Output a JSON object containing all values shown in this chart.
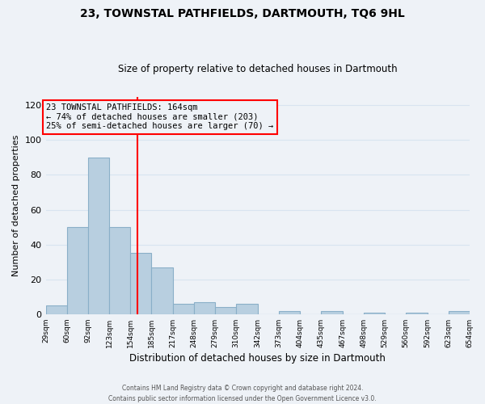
{
  "title": "23, TOWNSTAL PATHFIELDS, DARTMOUTH, TQ6 9HL",
  "subtitle": "Size of property relative to detached houses in Dartmouth",
  "xlabel": "Distribution of detached houses by size in Dartmouth",
  "ylabel": "Number of detached properties",
  "bar_color": "#b8cfe0",
  "bar_edge_color": "#8aafc8",
  "bins": [
    29,
    60,
    92,
    123,
    154,
    185,
    217,
    248,
    279,
    310,
    342,
    373,
    404,
    435,
    467,
    498,
    529,
    560,
    592,
    623,
    654
  ],
  "counts": [
    5,
    50,
    90,
    50,
    35,
    27,
    6,
    7,
    4,
    6,
    0,
    2,
    0,
    2,
    0,
    1,
    0,
    1,
    0,
    2
  ],
  "tick_labels": [
    "29sqm",
    "60sqm",
    "92sqm",
    "123sqm",
    "154sqm",
    "185sqm",
    "217sqm",
    "248sqm",
    "279sqm",
    "310sqm",
    "342sqm",
    "373sqm",
    "404sqm",
    "435sqm",
    "467sqm",
    "498sqm",
    "529sqm",
    "560sqm",
    "592sqm",
    "623sqm",
    "654sqm"
  ],
  "ylim": [
    0,
    125
  ],
  "yticks": [
    0,
    20,
    40,
    60,
    80,
    100,
    120
  ],
  "ref_line_x": 164,
  "annotation_line1": "23 TOWNSTAL PATHFIELDS: 164sqm",
  "annotation_line2": "← 74% of detached houses are smaller (203)",
  "annotation_line3": "25% of semi-detached houses are larger (70) →",
  "footer_line1": "Contains HM Land Registry data © Crown copyright and database right 2024.",
  "footer_line2": "Contains public sector information licensed under the Open Government Licence v3.0.",
  "background_color": "#eef2f7",
  "grid_color": "#d8e4f0"
}
